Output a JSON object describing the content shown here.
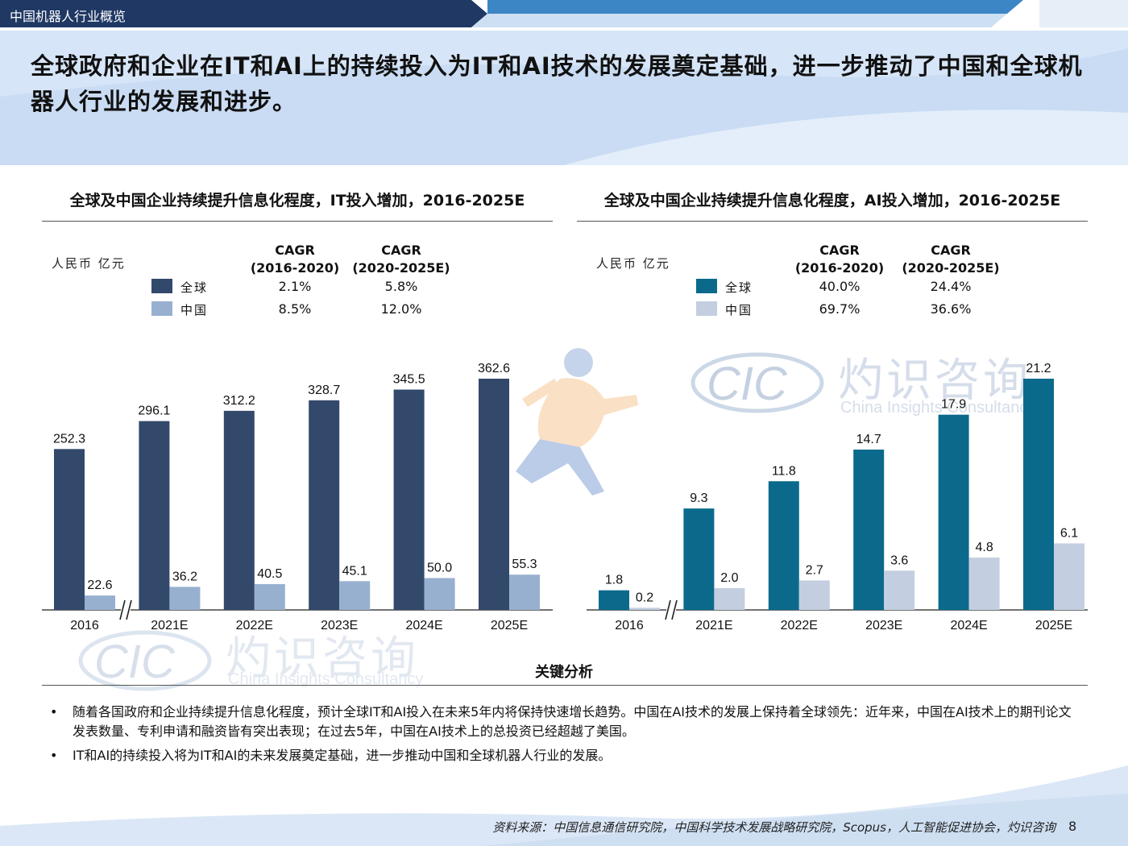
{
  "header": {
    "section_title": "中国机器人行业概览",
    "main_title": "全球政府和企业在IT和AI上的持续投入为IT和AI技术的发展奠定基础，进一步推动了中国和全球机器人行业的发展和进步。"
  },
  "colors": {
    "topbar_dark": "#1f3864",
    "topbar_accent": "#2f6bb0",
    "header_bg": "#cfe0f5",
    "it_global": "#33496b",
    "it_china": "#98b0cf",
    "ai_global": "#0b6a8c",
    "ai_china": "#c3cfe0"
  },
  "watermark": {
    "logo_text": "CIC",
    "cn_name": "灼识咨询",
    "en_name": "China Insights Consultancy"
  },
  "it_panel": {
    "title": "全球及中国企业持续提升信息化程度，IT投入增加，2016-2025E",
    "unit": "人民币 亿元",
    "cagr_headers": [
      {
        "line1": "CAGR",
        "line2": "(2016-2020)"
      },
      {
        "line1": "CAGR",
        "line2": "(2020-2025E)"
      }
    ],
    "legend": [
      {
        "label": "全球",
        "cagr1": "2.1%",
        "cagr2": "5.8%"
      },
      {
        "label": "中国",
        "cagr1": "8.5%",
        "cagr2": "12.0%"
      }
    ]
  },
  "ai_panel": {
    "title": "全球及中国企业持续提升信息化程度，AI投入增加，2016-2025E",
    "unit": "人民币 亿元",
    "cagr_headers": [
      {
        "line1": "CAGR",
        "line2": "(2016-2020)"
      },
      {
        "line1": "CAGR",
        "line2": "(2020-2025E)"
      }
    ],
    "legend": [
      {
        "label": "全球",
        "cagr1": "40.0%",
        "cagr2": "24.4%"
      },
      {
        "label": "中国",
        "cagr1": "69.7%",
        "cagr2": "36.6%"
      }
    ]
  },
  "chart_data": [
    {
      "type": "bar",
      "title": "全球及中国企业持续提升信息化程度，IT投入增加，2016-2025E",
      "ylabel": "人民币 亿元",
      "categories": [
        "2016",
        "2021E",
        "2022E",
        "2023E",
        "2024E",
        "2025E"
      ],
      "axis_break_after": "2016",
      "series": [
        {
          "name": "全球",
          "values": [
            252.3,
            296.1,
            312.2,
            328.7,
            345.5,
            362.6
          ],
          "labels": [
            "252.3",
            "296.1",
            "312.2",
            "328.7",
            "345.5",
            "362.6"
          ]
        },
        {
          "name": "中国",
          "values": [
            22.6,
            36.2,
            40.5,
            45.1,
            50.0,
            55.3
          ],
          "labels": [
            "22.6",
            "36.2",
            "40.5",
            "45.1",
            "50.0",
            "55.3"
          ]
        }
      ],
      "ylim": [
        0,
        362.6
      ],
      "grid": false,
      "legend": "top-left"
    },
    {
      "type": "bar",
      "title": "全球及中国企业持续提升信息化程度，AI投入增加，2016-2025E",
      "ylabel": "人民币 亿元",
      "categories": [
        "2016",
        "2021E",
        "2022E",
        "2023E",
        "2024E",
        "2025E"
      ],
      "axis_break_after": "2016",
      "series": [
        {
          "name": "全球",
          "values": [
            1.8,
            9.3,
            11.8,
            14.7,
            17.9,
            21.2
          ],
          "labels": [
            "1.8",
            "9.3",
            "11.8",
            "14.7",
            "17.9",
            "21.2"
          ]
        },
        {
          "name": "中国",
          "values": [
            0.2,
            2.0,
            2.7,
            3.6,
            4.8,
            6.1
          ],
          "labels": [
            "0.2",
            "2.0",
            "2.7",
            "3.6",
            "4.8",
            "6.1"
          ]
        }
      ],
      "ylim": [
        0,
        21.2
      ],
      "grid": false,
      "legend": "top-left"
    }
  ],
  "key_analysis": {
    "title": "关键分析",
    "bullets": [
      "随着各国政府和企业持续提升信息化程度，预计全球IT和AI投入在未来5年内将保持快速增长趋势。中国在AI技术的发展上保持着全球领先：近年来，中国在AI技术上的期刊论文发表数量、专利申请和融资皆有突出表现；在过去5年，中国在AI技术上的总投资已经超越了美国。",
      "IT和AI的持续投入将为IT和AI的未来发展奠定基础，进一步推动中国和全球机器人行业的发展。"
    ]
  },
  "footer": {
    "source": "资料来源：中国信息通信研究院，中国科学技术发展战略研究院，Scopus，人工智能促进协会，灼识咨询",
    "page_number": "8"
  }
}
